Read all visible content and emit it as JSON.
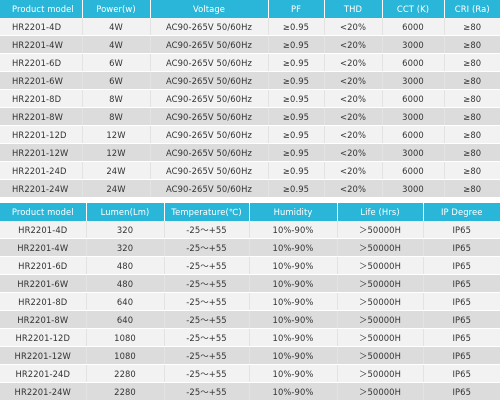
{
  "table1": {
    "headers": [
      "Product model",
      "Power(w)",
      "Voltage",
      "PF",
      "THD",
      "CCT (K)",
      "CRI (Ra)"
    ],
    "rows": [
      [
        "HR2201-4D",
        "4W",
        "AC90-265V 50/60Hz",
        "≥0.95",
        "<20%",
        "6000",
        "≥80"
      ],
      [
        "HR2201-4W",
        "4W",
        "AC90-265V 50/60Hz",
        "≥0.95",
        "<20%",
        "3000",
        "≥80"
      ],
      [
        "HR2201-6D",
        "6W",
        "AC90-265V 50/60Hz",
        "≥0.95",
        "<20%",
        "6000",
        "≥80"
      ],
      [
        "HR2201-6W",
        "6W",
        "AC90-265V 50/60Hz",
        "≥0.95",
        "<20%",
        "3000",
        "≥80"
      ],
      [
        "HR2201-8D",
        "8W",
        "AC90-265V 50/60Hz",
        "≥0.95",
        "<20%",
        "6000",
        "≥80"
      ],
      [
        "HR2201-8W",
        "8W",
        "AC90-265V 50/60Hz",
        "≥0.95",
        "<20%",
        "3000",
        "≥80"
      ],
      [
        "HR2201-12D",
        "12W",
        "AC90-265V 50/60Hz",
        "≥0.95",
        "<20%",
        "6000",
        "≥80"
      ],
      [
        "HR2201-12W",
        "12W",
        "AC90-265V 50/60Hz",
        "≥0.95",
        "<20%",
        "3000",
        "≥80"
      ],
      [
        "HR2201-24D",
        "24W",
        "AC90-265V 50/60Hz",
        "≥0.95",
        "<20%",
        "6000",
        "≥80"
      ],
      [
        "HR2201-24W",
        "24W",
        "AC90-265V 50/60Hz",
        "≥0.95",
        "<20%",
        "3000",
        "≥80"
      ]
    ]
  },
  "table2": {
    "headers": [
      "Product model",
      "Lumen(Lm)",
      "Temperature(℃)",
      "Humidity",
      "Life (Hrs)",
      "IP Degree"
    ],
    "rows": [
      [
        "HR2201-4D",
        "320",
        "-25～+55",
        "10%-90%",
        "＞50000H",
        "IP65"
      ],
      [
        "HR2201-4W",
        "320",
        "-25～+55",
        "10%-90%",
        "＞50000H",
        "IP65"
      ],
      [
        "HR2201-6D",
        "480",
        "-25～+55",
        "10%-90%",
        "＞50000H",
        "IP65"
      ],
      [
        "HR2201-6W",
        "480",
        "-25～+55",
        "10%-90%",
        "＞50000H",
        "IP65"
      ],
      [
        "HR2201-8D",
        "640",
        "-25～+55",
        "10%-90%",
        "＞50000H",
        "IP65"
      ],
      [
        "HR2201-8W",
        "640",
        "-25～+55",
        "10%-90%",
        "＞50000H",
        "IP65"
      ],
      [
        "HR2201-12D",
        "1080",
        "-25～+55",
        "10%-90%",
        "＞50000H",
        "IP65"
      ],
      [
        "HR2201-12W",
        "1080",
        "-25～+55",
        "10%-90%",
        "＞50000H",
        "IP65"
      ],
      [
        "HR2201-24D",
        "2280",
        "-25～+55",
        "10%-90%",
        "＞50000H",
        "IP65"
      ],
      [
        "HR2201-24W",
        "2280",
        "-25～+55",
        "10%-90%",
        "＞50000H",
        "IP65"
      ]
    ]
  },
  "colors": {
    "header_bg": "#29b6d9",
    "row_light": "#f2f2f2",
    "row_dark": "#dcdcdc"
  }
}
